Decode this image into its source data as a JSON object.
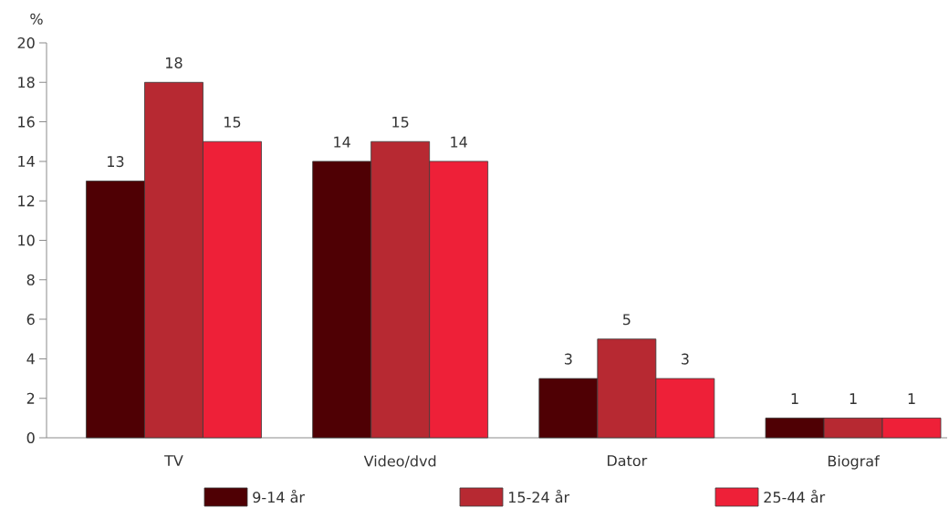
{
  "chart_data": {
    "type": "bar",
    "ylabel": "%",
    "categories": [
      "TV",
      "Video/dvd",
      "Dator",
      "Biograf"
    ],
    "series": [
      {
        "name": "9-14 år",
        "color": "#4f0004",
        "values": [
          13,
          14,
          3,
          1
        ]
      },
      {
        "name": "15-24 år",
        "color": "#b72932",
        "values": [
          18,
          15,
          5,
          1
        ]
      },
      {
        "name": "25-44 år",
        "color": "#ee2038",
        "values": [
          15,
          14,
          3,
          1
        ]
      }
    ],
    "ylim": [
      0,
      20
    ],
    "yticks": [
      0,
      2,
      4,
      6,
      8,
      10,
      12,
      14,
      16,
      18,
      20
    ],
    "data_labels": true,
    "legend": "bottom"
  }
}
